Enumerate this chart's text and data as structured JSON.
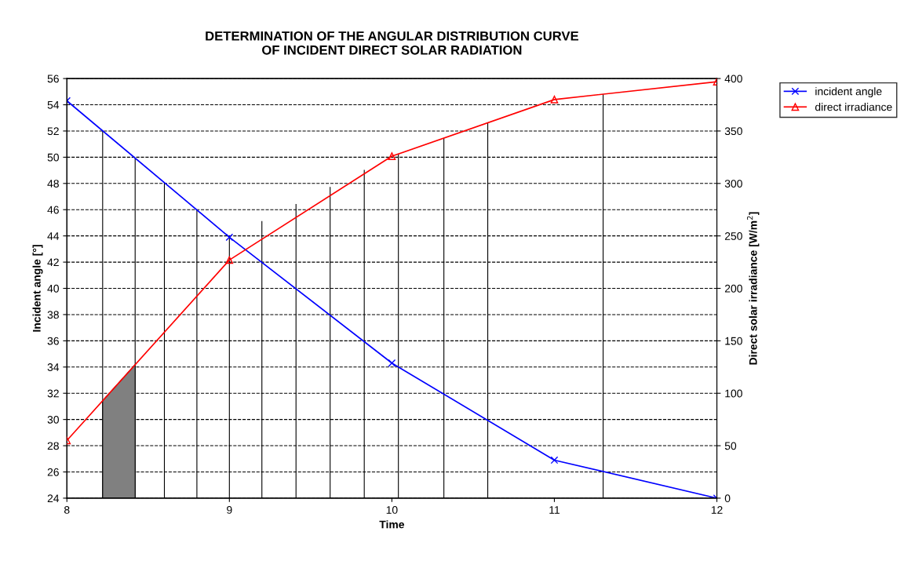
{
  "chart_data": {
    "type": "line",
    "title": "DETERMINATION OF THE ANGULAR DISTRIBUTION CURVE\nOF INCIDENT DIRECT SOLAR RADIATION",
    "xlabel": "Time",
    "ylabel": "Incident angle [°]",
    "y2label": "Direct solar irradiance [W/m$^{2}$]",
    "x": [
      8,
      9,
      10,
      11,
      12
    ],
    "series": [
      {
        "name": "incident angle",
        "color": "#0000ff",
        "marker": "cross",
        "values": [
          54.3,
          43.9,
          34.3,
          26.9,
          24.0
        ]
      },
      {
        "name": "direct irradiance",
        "color": "#ff0000",
        "marker": "triangle",
        "axis": "y2",
        "values": [
          55,
          227,
          326,
          380,
          397
        ]
      }
    ],
    "xlim": [
      8,
      12
    ],
    "xticks": [
      8,
      9,
      10,
      11,
      12
    ],
    "ylim": [
      24,
      56
    ],
    "yticks": [
      24,
      26,
      28,
      30,
      32,
      34,
      36,
      38,
      40,
      42,
      44,
      46,
      48,
      50,
      52,
      54,
      56
    ],
    "y2lim": [
      0,
      400
    ],
    "y2ticks": [
      0,
      50,
      100,
      150,
      200,
      250,
      300,
      350,
      400
    ],
    "ref_lines": [
      {
        "axis": "x",
        "value": 8.22,
        "color": "#000000"
      },
      {
        "axis": "x",
        "value": 8.42,
        "color": "#000000"
      },
      {
        "axis": "x",
        "value": 8.6,
        "color": "#000000"
      },
      {
        "axis": "x",
        "value": 8.8,
        "color": "#000000"
      },
      {
        "axis": "x",
        "value": 9.0,
        "color": "#000000"
      },
      {
        "axis": "x",
        "value": 9.2,
        "color": "#000000"
      },
      {
        "axis": "x",
        "value": 9.41,
        "color": "#000000"
      },
      {
        "axis": "x",
        "value": 9.62,
        "color": "#000000"
      },
      {
        "axis": "x",
        "value": 9.83,
        "color": "#000000"
      },
      {
        "axis": "x",
        "value": 10.04,
        "color": "#000000"
      },
      {
        "axis": "x",
        "value": 10.32,
        "color": "#000000"
      },
      {
        "axis": "x",
        "value": 10.59,
        "color": "#000000"
      },
      {
        "axis": "x",
        "value": 11.3,
        "color": "#000000"
      }
    ],
    "bands": [
      {
        "axis": "x",
        "from": 8.22,
        "to": 8.42,
        "color": "#808080"
      }
    ],
    "grid": "y",
    "line_style": "solid",
    "legend": "top right"
  }
}
